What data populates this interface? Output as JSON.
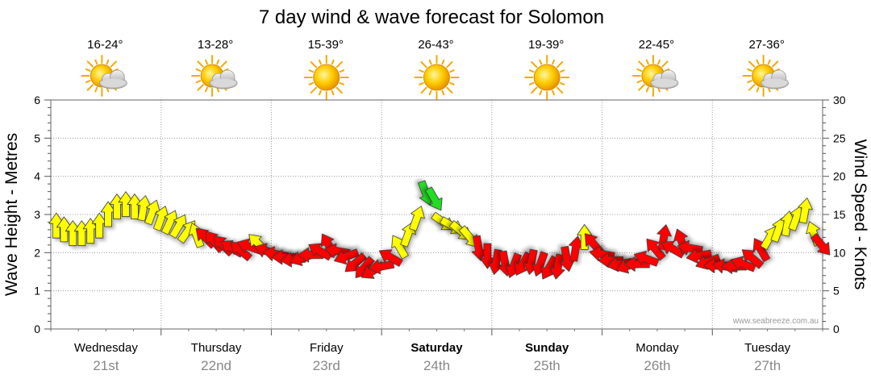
{
  "chart_data": {
    "type": "line",
    "title": "7 day wind & wave forecast for Solomon",
    "y_left": {
      "label": "Wave Height - Metres",
      "min": 0,
      "max": 6,
      "ticks": [
        "0",
        "1",
        "2",
        "3",
        "4",
        "5",
        "6"
      ]
    },
    "y_right": {
      "label": "Wind Speed - Knots",
      "min": 0,
      "max": 30,
      "ticks": [
        "0",
        "5",
        "10",
        "15",
        "20",
        "25",
        "30"
      ]
    },
    "x_range": [
      0,
      7
    ],
    "watermark": "www.seabreeze.com.au",
    "days": [
      {
        "name": "Wednesday",
        "date": "21st",
        "temps": "16-24°",
        "icon": "sun-cloud-icon",
        "bold": false
      },
      {
        "name": "Thursday",
        "date": "22nd",
        "temps": "13-28°",
        "icon": "sun-cloud-icon",
        "bold": false
      },
      {
        "name": "Friday",
        "date": "23rd",
        "temps": "15-39°",
        "icon": "sun-icon",
        "bold": false
      },
      {
        "name": "Saturday",
        "date": "24th",
        "temps": "26-43°",
        "icon": "sun-icon",
        "bold": true
      },
      {
        "name": "Sunday",
        "date": "25th",
        "temps": "19-39°",
        "icon": "sun-icon",
        "bold": true
      },
      {
        "name": "Monday",
        "date": "26th",
        "temps": "22-45°",
        "icon": "sun-cloud-icon",
        "bold": false
      },
      {
        "name": "Tuesday",
        "date": "27th",
        "temps": "27-36°",
        "icon": "sun-cloud-icon",
        "bold": false
      }
    ],
    "colors": {
      "yellow": "#ffff00",
      "red": "#ff0000",
      "green": "#22dd22",
      "outline": "#333333"
    },
    "series": [
      {
        "name": "Wind",
        "points": [
          {
            "t": 0.05,
            "v": 13.5,
            "dir": 0,
            "c": "yellow"
          },
          {
            "t": 0.12,
            "v": 13,
            "dir": 0,
            "c": "yellow"
          },
          {
            "t": 0.2,
            "v": 12.5,
            "dir": 0,
            "c": "yellow"
          },
          {
            "t": 0.28,
            "v": 12.5,
            "dir": 0,
            "c": "yellow"
          },
          {
            "t": 0.36,
            "v": 12.8,
            "dir": 0,
            "c": "yellow"
          },
          {
            "t": 0.44,
            "v": 13.5,
            "dir": 0,
            "c": "yellow"
          },
          {
            "t": 0.52,
            "v": 15,
            "dir": 0,
            "c": "yellow"
          },
          {
            "t": 0.6,
            "v": 16,
            "dir": 0,
            "c": "yellow"
          },
          {
            "t": 0.68,
            "v": 16.3,
            "dir": 0,
            "c": "yellow"
          },
          {
            "t": 0.76,
            "v": 16,
            "dir": 0,
            "c": "yellow"
          },
          {
            "t": 0.84,
            "v": 15.8,
            "dir": 10,
            "c": "yellow"
          },
          {
            "t": 0.92,
            "v": 15.3,
            "dir": 20,
            "c": "yellow"
          },
          {
            "t": 1.0,
            "v": 14.5,
            "dir": 20,
            "c": "yellow"
          },
          {
            "t": 1.08,
            "v": 14,
            "dir": 25,
            "c": "yellow"
          },
          {
            "t": 1.16,
            "v": 13.5,
            "dir": 30,
            "c": "yellow"
          },
          {
            "t": 1.24,
            "v": 12.8,
            "dir": 35,
            "c": "yellow"
          },
          {
            "t": 1.32,
            "v": 12.3,
            "dir": -20,
            "c": "yellow"
          },
          {
            "t": 1.4,
            "v": 12,
            "dir": -45,
            "c": "red"
          },
          {
            "t": 1.48,
            "v": 11.5,
            "dir": -40,
            "c": "red"
          },
          {
            "t": 1.56,
            "v": 11,
            "dir": -45,
            "c": "red"
          },
          {
            "t": 1.64,
            "v": 10.6,
            "dir": -60,
            "c": "red"
          },
          {
            "t": 1.72,
            "v": 10.3,
            "dir": -50,
            "c": "red"
          },
          {
            "t": 1.8,
            "v": 10.8,
            "dir": -70,
            "c": "red"
          },
          {
            "t": 1.88,
            "v": 11.2,
            "dir": -45,
            "c": "yellow"
          },
          {
            "t": 1.96,
            "v": 10.2,
            "dir": -70,
            "c": "red"
          },
          {
            "t": 2.04,
            "v": 9.8,
            "dir": -80,
            "c": "red"
          },
          {
            "t": 2.12,
            "v": 9.4,
            "dir": -90,
            "c": "red"
          },
          {
            "t": 2.2,
            "v": 9.1,
            "dir": -95,
            "c": "red"
          },
          {
            "t": 2.28,
            "v": 9.3,
            "dir": -110,
            "c": "red"
          },
          {
            "t": 2.36,
            "v": 9.7,
            "dir": -90,
            "c": "red"
          },
          {
            "t": 2.44,
            "v": 10.2,
            "dir": -60,
            "c": "red"
          },
          {
            "t": 2.52,
            "v": 11,
            "dir": -30,
            "c": "red"
          },
          {
            "t": 2.6,
            "v": 10.2,
            "dir": -80,
            "c": "red"
          },
          {
            "t": 2.68,
            "v": 9.5,
            "dir": -110,
            "c": "red"
          },
          {
            "t": 2.76,
            "v": 8.6,
            "dir": -130,
            "c": "red"
          },
          {
            "t": 2.84,
            "v": 8,
            "dir": -140,
            "c": "red"
          },
          {
            "t": 2.92,
            "v": 7.6,
            "dir": -120,
            "c": "red"
          },
          {
            "t": 3.0,
            "v": 8.2,
            "dir": -100,
            "c": "red"
          },
          {
            "t": 3.08,
            "v": 9.4,
            "dir": -60,
            "c": "red"
          },
          {
            "t": 3.16,
            "v": 10.8,
            "dir": -30,
            "c": "yellow"
          },
          {
            "t": 3.24,
            "v": 12.4,
            "dir": 20,
            "c": "yellow"
          },
          {
            "t": 3.32,
            "v": 14.5,
            "dir": 20,
            "c": "yellow"
          },
          {
            "t": 3.4,
            "v": 17.8,
            "dir": 160,
            "c": "green"
          },
          {
            "t": 3.48,
            "v": 17,
            "dir": 150,
            "c": "green"
          },
          {
            "t": 3.56,
            "v": 14,
            "dir": 125,
            "c": "yellow"
          },
          {
            "t": 3.64,
            "v": 13.5,
            "dir": 120,
            "c": "yellow"
          },
          {
            "t": 3.72,
            "v": 12.8,
            "dir": 130,
            "c": "yellow"
          },
          {
            "t": 3.8,
            "v": 12,
            "dir": 140,
            "c": "yellow"
          },
          {
            "t": 3.88,
            "v": 10.6,
            "dir": 170,
            "c": "red"
          },
          {
            "t": 3.96,
            "v": 9.6,
            "dir": 180,
            "c": "red"
          },
          {
            "t": 4.04,
            "v": 8.8,
            "dir": 190,
            "c": "red"
          },
          {
            "t": 4.12,
            "v": 8.6,
            "dir": 170,
            "c": "red"
          },
          {
            "t": 4.2,
            "v": 8.3,
            "dir": 200,
            "c": "red"
          },
          {
            "t": 4.28,
            "v": 8.5,
            "dir": 210,
            "c": "red"
          },
          {
            "t": 4.36,
            "v": 8.8,
            "dir": 190,
            "c": "red"
          },
          {
            "t": 4.44,
            "v": 8.5,
            "dir": 200,
            "c": "red"
          },
          {
            "t": 4.52,
            "v": 8,
            "dir": 210,
            "c": "red"
          },
          {
            "t": 4.6,
            "v": 8.2,
            "dir": 190,
            "c": "red"
          },
          {
            "t": 4.68,
            "v": 9.2,
            "dir": 170,
            "c": "red"
          },
          {
            "t": 4.76,
            "v": 10.5,
            "dir": 10,
            "c": "red"
          },
          {
            "t": 4.84,
            "v": 12,
            "dir": 0,
            "c": "yellow"
          },
          {
            "t": 4.92,
            "v": 11.2,
            "dir": -40,
            "c": "red"
          },
          {
            "t": 5.0,
            "v": 9.8,
            "dir": -80,
            "c": "red"
          },
          {
            "t": 5.08,
            "v": 9,
            "dir": -90,
            "c": "red"
          },
          {
            "t": 5.16,
            "v": 8.5,
            "dir": -100,
            "c": "red"
          },
          {
            "t": 5.24,
            "v": 8.3,
            "dir": -110,
            "c": "red"
          },
          {
            "t": 5.32,
            "v": 8.5,
            "dir": -90,
            "c": "red"
          },
          {
            "t": 5.4,
            "v": 9.2,
            "dir": -70,
            "c": "red"
          },
          {
            "t": 5.48,
            "v": 10.5,
            "dir": -40,
            "c": "red"
          },
          {
            "t": 5.56,
            "v": 12,
            "dir": 10,
            "c": "red"
          },
          {
            "t": 5.64,
            "v": 10.5,
            "dir": -60,
            "c": "red"
          },
          {
            "t": 5.72,
            "v": 11.5,
            "dir": -20,
            "c": "red"
          },
          {
            "t": 5.8,
            "v": 10.6,
            "dir": -80,
            "c": "red"
          },
          {
            "t": 5.88,
            "v": 9.6,
            "dir": -100,
            "c": "red"
          },
          {
            "t": 5.96,
            "v": 8.8,
            "dir": -110,
            "c": "red"
          },
          {
            "t": 6.04,
            "v": 8.3,
            "dir": -90,
            "c": "red"
          },
          {
            "t": 6.12,
            "v": 8.2,
            "dir": -80,
            "c": "red"
          },
          {
            "t": 6.2,
            "v": 8.2,
            "dir": -90,
            "c": "red"
          },
          {
            "t": 6.28,
            "v": 8.5,
            "dir": -70,
            "c": "red"
          },
          {
            "t": 6.36,
            "v": 9.3,
            "dir": -50,
            "c": "red"
          },
          {
            "t": 6.44,
            "v": 10.4,
            "dir": -30,
            "c": "red"
          },
          {
            "t": 6.52,
            "v": 12,
            "dir": 30,
            "c": "yellow"
          },
          {
            "t": 6.6,
            "v": 13,
            "dir": 20,
            "c": "yellow"
          },
          {
            "t": 6.68,
            "v": 13.8,
            "dir": 10,
            "c": "yellow"
          },
          {
            "t": 6.76,
            "v": 14.5,
            "dir": 20,
            "c": "yellow"
          },
          {
            "t": 6.84,
            "v": 15.5,
            "dir": 10,
            "c": "yellow"
          },
          {
            "t": 6.92,
            "v": 12.5,
            "dir": -20,
            "c": "yellow"
          },
          {
            "t": 6.99,
            "v": 11,
            "dir": 140,
            "c": "red"
          }
        ]
      }
    ]
  }
}
